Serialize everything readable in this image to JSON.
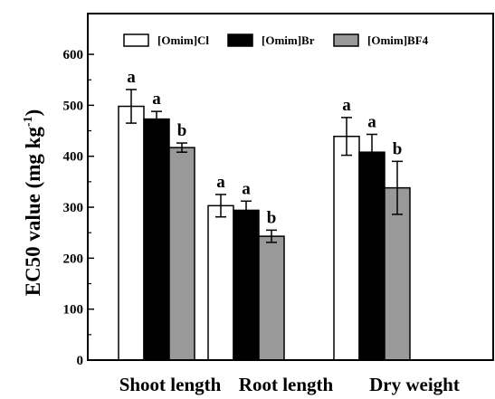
{
  "chart_data": {
    "type": "bar",
    "ylabel_main": "EC50 value (mg kg",
    "ylabel_exp": "-1",
    "ylabel_close": ")",
    "ylim": [
      0,
      680
    ],
    "yticks": [
      0,
      100,
      200,
      300,
      400,
      500,
      600
    ],
    "categories": [
      "Shoot length",
      "Root length",
      "Dry weight"
    ],
    "legend_position": "top",
    "series": [
      {
        "name": "[Omim]Cl",
        "color": "#ffffff",
        "values": [
          498,
          303,
          439
        ],
        "errors": [
          33,
          22,
          37
        ],
        "labels": [
          "a",
          "a",
          "a"
        ]
      },
      {
        "name": "[Omim]Br",
        "color": "#000000",
        "values": [
          473,
          294,
          408
        ],
        "errors": [
          15,
          18,
          35
        ],
        "labels": [
          "a",
          "a",
          "a"
        ]
      },
      {
        "name": "[Omim]BF4",
        "color": "#999999",
        "values": [
          417,
          243,
          338
        ],
        "errors": [
          9,
          12,
          52
        ],
        "labels": [
          "b",
          "b",
          "b"
        ]
      }
    ]
  }
}
